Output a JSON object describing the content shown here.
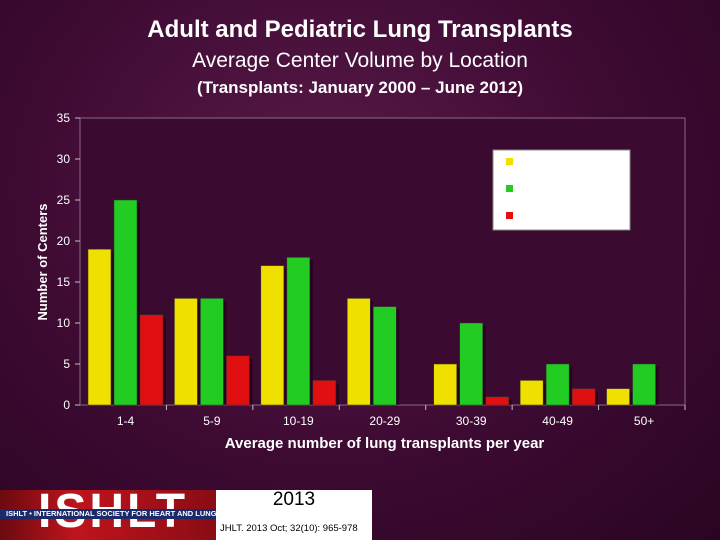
{
  "header": {
    "title": "Adult and Pediatric Lung Transplants",
    "subtitle": "Average Center Volume by Location",
    "period": "(Transplants: January  2000 – June 2012)"
  },
  "chart_data": {
    "type": "bar",
    "xlabel": "Average number of lung transplants per year",
    "ylabel": "Number of Centers",
    "ylim": [
      0,
      35
    ],
    "yticks": [
      0,
      5,
      10,
      15,
      20,
      25,
      30,
      35
    ],
    "categories": [
      "1-4",
      "5-9",
      "10-19",
      "20-29",
      "30-39",
      "40-49",
      "50+"
    ],
    "grid": false,
    "legend": {
      "placement": "top-right",
      "entries_visible": false
    },
    "series": [
      {
        "color": "#f0e000",
        "values": [
          19,
          13,
          17,
          13,
          5,
          3,
          2
        ]
      },
      {
        "color": "#22cc22",
        "values": [
          25,
          13,
          18,
          12,
          10,
          5,
          5
        ]
      },
      {
        "color": "#e01010",
        "values": [
          11,
          6,
          3,
          0,
          1,
          2,
          0
        ]
      }
    ]
  },
  "footer": {
    "logo": "ISHLT",
    "banner": "ISHLT • INTERNATIONAL SOCIETY FOR HEART AND LUNG TRANSPLANTATION",
    "year": "2013",
    "citation": "JHLT. 2013 Oct; 32(10): 965-978"
  }
}
